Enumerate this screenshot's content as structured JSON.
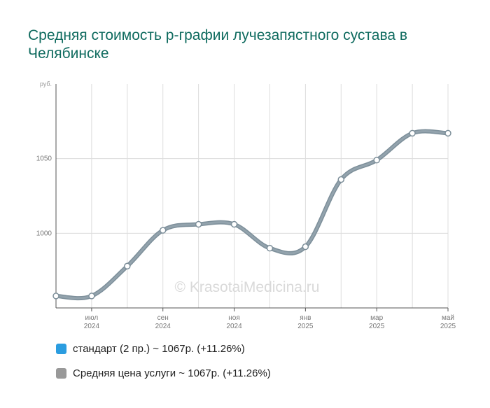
{
  "chart_data": {
    "type": "line",
    "title": "Средняя стоимость р-графии лучезапястного сустава в Челябинске",
    "ylabel": "руб.",
    "ylim": [
      950,
      1100
    ],
    "yticks": [
      "1000",
      "1050"
    ],
    "yticks_values": [
      1000,
      1050
    ],
    "xticks": [
      {
        "index": 1,
        "line1": "июл",
        "line2": "2024"
      },
      {
        "index": 3,
        "line1": "сен",
        "line2": "2024"
      },
      {
        "index": 5,
        "line1": "ноя",
        "line2": "2024"
      },
      {
        "index": 7,
        "line1": "янв",
        "line2": "2025"
      },
      {
        "index": 9,
        "line1": "мар",
        "line2": "2025"
      },
      {
        "index": 11,
        "line1": "май",
        "line2": "2025"
      }
    ],
    "x": [
      "2024-06",
      "2024-07",
      "2024-08",
      "2024-09",
      "2024-10",
      "2024-11",
      "2024-12",
      "2025-01",
      "2025-02",
      "2025-03",
      "2025-04",
      "2025-05"
    ],
    "series": [
      {
        "name": "стандарт (2 пр.)",
        "color": "#2b9de0",
        "values": [
          958,
          958,
          978,
          1002,
          1006,
          1006,
          990,
          991,
          1036,
          1049,
          1067,
          1067
        ]
      },
      {
        "name": "Средняя цена услуги",
        "color": "#8a9ba6",
        "values": [
          958,
          958,
          978,
          1002,
          1006,
          1006,
          990,
          991,
          1036,
          1049,
          1067,
          1067
        ]
      }
    ],
    "grid": true,
    "watermark": "© KrasotaiMedicina.ru"
  },
  "legend": [
    {
      "color": "#2b9de0",
      "text": "стандарт (2 пр.) ~ 1067р. (+11.26%)"
    },
    {
      "color": "#999999",
      "text": "Средняя цена услуги ~ 1067р. (+11.26%)"
    }
  ]
}
